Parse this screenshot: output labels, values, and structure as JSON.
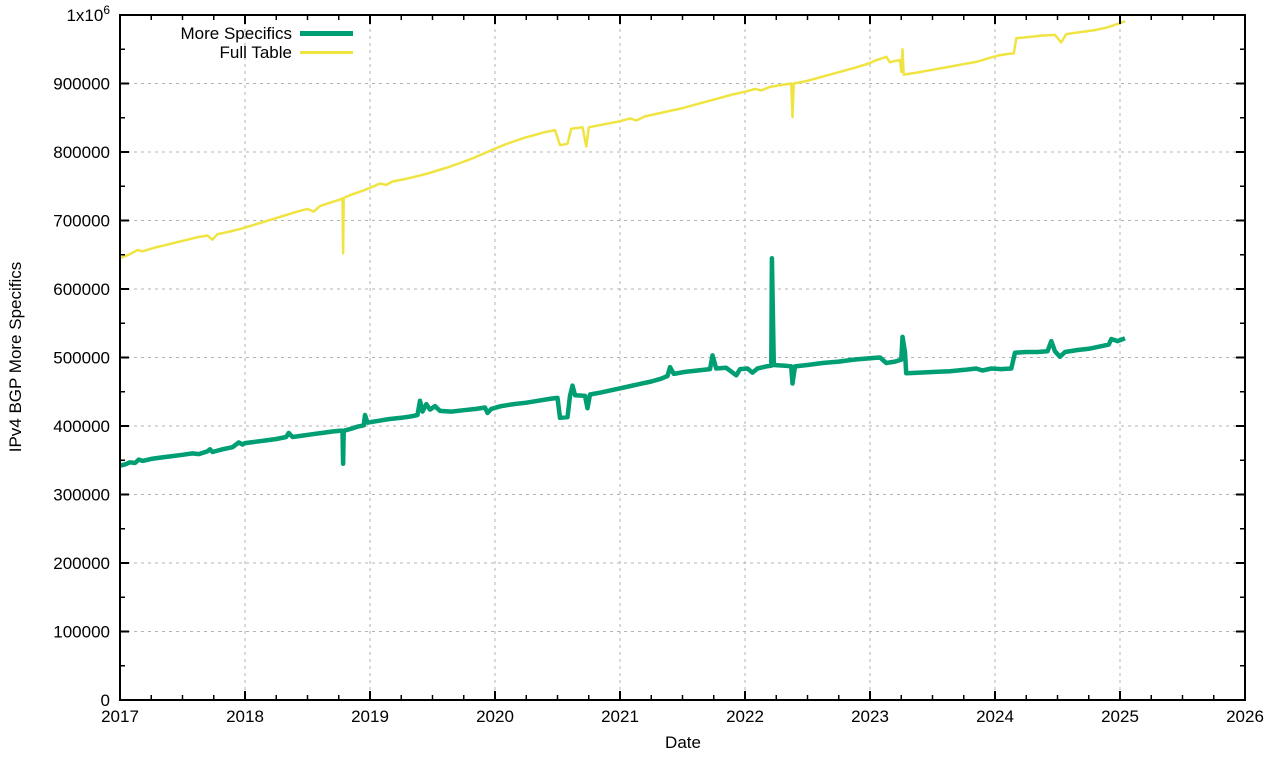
{
  "figure": {
    "background": "#ffffff",
    "border_color": "#000000",
    "grid_color": "#b3b3b3",
    "text_color": "#000000"
  },
  "axes": {
    "xlabel": "Date",
    "ylabel": "IPv4 BGP More Specifics",
    "x_ticks": [
      2017,
      2018,
      2019,
      2020,
      2021,
      2022,
      2023,
      2024,
      2025,
      2026
    ],
    "y_ticks": [
      {
        "value": 0,
        "label": "0"
      },
      {
        "value": 100000,
        "label": "100000"
      },
      {
        "value": 200000,
        "label": "200000"
      },
      {
        "value": 300000,
        "label": "300000"
      },
      {
        "value": 400000,
        "label": "400000"
      },
      {
        "value": 500000,
        "label": "500000"
      },
      {
        "value": 600000,
        "label": "600000"
      },
      {
        "value": 700000,
        "label": "700000"
      },
      {
        "value": 800000,
        "label": "800000"
      },
      {
        "value": 900000,
        "label": "900000"
      },
      {
        "value": 1000000,
        "label": "1x10",
        "sup": "6"
      }
    ]
  },
  "legend": {
    "position": "top-left-inside",
    "items": [
      {
        "label": "More Specifics",
        "color": "#009e73",
        "sample_thickness": 5
      },
      {
        "label": "Full Table",
        "color": "#f0e442",
        "sample_thickness": 3
      }
    ]
  },
  "chart_data": {
    "type": "line",
    "title": "",
    "xlabel": "Date",
    "ylabel": "IPv4 BGP More Specifics",
    "xlim": [
      2017,
      2026
    ],
    "ylim": [
      0,
      1000000
    ],
    "grid": true,
    "x_minor_step": 0.25,
    "y_minor_step": 50000,
    "legend_position": "top-left-inside",
    "series": [
      {
        "name": "More Specifics",
        "color": "#009e73",
        "line_width": 4.5,
        "points": [
          [
            2017.0,
            342000
          ],
          [
            2017.04,
            344000
          ],
          [
            2017.08,
            347000
          ],
          [
            2017.12,
            346000
          ],
          [
            2017.15,
            351000
          ],
          [
            2017.18,
            349000
          ],
          [
            2017.25,
            352000
          ],
          [
            2017.33,
            354000
          ],
          [
            2017.42,
            356000
          ],
          [
            2017.5,
            358000
          ],
          [
            2017.58,
            360000
          ],
          [
            2017.63,
            359000
          ],
          [
            2017.7,
            363000
          ],
          [
            2017.72,
            366000
          ],
          [
            2017.74,
            362000
          ],
          [
            2017.82,
            366000
          ],
          [
            2017.9,
            369000
          ],
          [
            2017.95,
            376000
          ],
          [
            2017.98,
            373000
          ],
          [
            2018.0,
            375000
          ],
          [
            2018.08,
            377000
          ],
          [
            2018.17,
            379000
          ],
          [
            2018.25,
            381000
          ],
          [
            2018.33,
            384000
          ],
          [
            2018.35,
            390000
          ],
          [
            2018.38,
            384000
          ],
          [
            2018.46,
            386000
          ],
          [
            2018.54,
            388000
          ],
          [
            2018.62,
            390000
          ],
          [
            2018.7,
            392000
          ],
          [
            2018.76,
            393000
          ],
          [
            2018.78,
            393000
          ],
          [
            2018.785,
            345000
          ],
          [
            2018.79,
            393000
          ],
          [
            2018.85,
            396000
          ],
          [
            2018.9,
            399000
          ],
          [
            2018.95,
            401000
          ],
          [
            2018.96,
            416000
          ],
          [
            2018.98,
            405000
          ],
          [
            2019.05,
            407000
          ],
          [
            2019.15,
            410000
          ],
          [
            2019.25,
            412000
          ],
          [
            2019.33,
            414000
          ],
          [
            2019.38,
            416000
          ],
          [
            2019.4,
            437000
          ],
          [
            2019.42,
            421000
          ],
          [
            2019.45,
            432000
          ],
          [
            2019.48,
            424000
          ],
          [
            2019.52,
            429000
          ],
          [
            2019.56,
            422000
          ],
          [
            2019.65,
            421000
          ],
          [
            2019.75,
            423000
          ],
          [
            2019.85,
            425000
          ],
          [
            2019.92,
            427000
          ],
          [
            2019.94,
            419000
          ],
          [
            2019.97,
            425000
          ],
          [
            2020.05,
            429000
          ],
          [
            2020.15,
            432000
          ],
          [
            2020.25,
            434000
          ],
          [
            2020.35,
            437000
          ],
          [
            2020.45,
            440000
          ],
          [
            2020.5,
            441000
          ],
          [
            2020.52,
            412000
          ],
          [
            2020.58,
            413000
          ],
          [
            2020.6,
            444000
          ],
          [
            2020.62,
            459000
          ],
          [
            2020.64,
            445000
          ],
          [
            2020.72,
            444000
          ],
          [
            2020.74,
            426000
          ],
          [
            2020.76,
            446000
          ],
          [
            2020.85,
            449000
          ],
          [
            2020.95,
            453000
          ],
          [
            2021.05,
            457000
          ],
          [
            2021.15,
            461000
          ],
          [
            2021.25,
            465000
          ],
          [
            2021.33,
            469000
          ],
          [
            2021.38,
            473000
          ],
          [
            2021.4,
            486000
          ],
          [
            2021.43,
            476000
          ],
          [
            2021.52,
            479000
          ],
          [
            2021.62,
            481000
          ],
          [
            2021.72,
            483000
          ],
          [
            2021.74,
            503000
          ],
          [
            2021.77,
            484000
          ],
          [
            2021.85,
            485000
          ],
          [
            2021.93,
            474000
          ],
          [
            2021.96,
            483000
          ],
          [
            2022.02,
            484000
          ],
          [
            2022.06,
            478000
          ],
          [
            2022.1,
            484000
          ],
          [
            2022.17,
            487000
          ],
          [
            2022.21,
            488000
          ],
          [
            2022.215,
            645000
          ],
          [
            2022.23,
            489000
          ],
          [
            2022.32,
            488000
          ],
          [
            2022.37,
            487000
          ],
          [
            2022.38,
            462000
          ],
          [
            2022.4,
            487000
          ],
          [
            2022.5,
            489000
          ],
          [
            2022.62,
            492000
          ],
          [
            2022.75,
            494000
          ],
          [
            2022.87,
            497000
          ],
          [
            2023.0,
            499000
          ],
          [
            2023.08,
            500000
          ],
          [
            2023.13,
            492000
          ],
          [
            2023.2,
            494000
          ],
          [
            2023.25,
            497000
          ],
          [
            2023.26,
            530000
          ],
          [
            2023.28,
            508000
          ],
          [
            2023.29,
            477000
          ],
          [
            2023.4,
            478000
          ],
          [
            2023.52,
            479000
          ],
          [
            2023.64,
            480000
          ],
          [
            2023.76,
            482000
          ],
          [
            2023.85,
            484000
          ],
          [
            2023.9,
            481000
          ],
          [
            2023.97,
            484000
          ],
          [
            2024.05,
            483000
          ],
          [
            2024.13,
            484000
          ],
          [
            2024.16,
            507000
          ],
          [
            2024.25,
            508000
          ],
          [
            2024.34,
            508000
          ],
          [
            2024.42,
            509000
          ],
          [
            2024.45,
            524000
          ],
          [
            2024.48,
            509000
          ],
          [
            2024.52,
            501000
          ],
          [
            2024.56,
            508000
          ],
          [
            2024.66,
            511000
          ],
          [
            2024.76,
            513000
          ],
          [
            2024.86,
            517000
          ],
          [
            2024.91,
            519000
          ],
          [
            2024.93,
            527000
          ],
          [
            2024.98,
            524000
          ],
          [
            2025.04,
            528000
          ]
        ]
      },
      {
        "name": "Full Table",
        "color": "#f0e442",
        "line_width": 2.5,
        "points": [
          [
            2017.0,
            645000
          ],
          [
            2017.08,
            651000
          ],
          [
            2017.14,
            657000
          ],
          [
            2017.18,
            655000
          ],
          [
            2017.27,
            660000
          ],
          [
            2017.36,
            664000
          ],
          [
            2017.45,
            668000
          ],
          [
            2017.54,
            672000
          ],
          [
            2017.63,
            676000
          ],
          [
            2017.7,
            678000
          ],
          [
            2017.74,
            672000
          ],
          [
            2017.78,
            680000
          ],
          [
            2017.88,
            684000
          ],
          [
            2017.97,
            688000
          ],
          [
            2018.06,
            693000
          ],
          [
            2018.15,
            698000
          ],
          [
            2018.24,
            703000
          ],
          [
            2018.33,
            708000
          ],
          [
            2018.42,
            713000
          ],
          [
            2018.5,
            717000
          ],
          [
            2018.55,
            713000
          ],
          [
            2018.6,
            721000
          ],
          [
            2018.68,
            726000
          ],
          [
            2018.75,
            730000
          ],
          [
            2018.78,
            732000
          ],
          [
            2018.785,
            652000
          ],
          [
            2018.79,
            733000
          ],
          [
            2018.87,
            739000
          ],
          [
            2018.95,
            744000
          ],
          [
            2019.03,
            750000
          ],
          [
            2019.08,
            754000
          ],
          [
            2019.13,
            752000
          ],
          [
            2019.18,
            757000
          ],
          [
            2019.27,
            760000
          ],
          [
            2019.36,
            764000
          ],
          [
            2019.45,
            768000
          ],
          [
            2019.54,
            773000
          ],
          [
            2019.63,
            778000
          ],
          [
            2019.72,
            784000
          ],
          [
            2019.81,
            790000
          ],
          [
            2019.9,
            797000
          ],
          [
            2020.0,
            805000
          ],
          [
            2020.08,
            811000
          ],
          [
            2020.16,
            816000
          ],
          [
            2020.24,
            821000
          ],
          [
            2020.32,
            825000
          ],
          [
            2020.4,
            829000
          ],
          [
            2020.48,
            832000
          ],
          [
            2020.52,
            810000
          ],
          [
            2020.58,
            812000
          ],
          [
            2020.61,
            834000
          ],
          [
            2020.7,
            836000
          ],
          [
            2020.73,
            808000
          ],
          [
            2020.75,
            836000
          ],
          [
            2020.83,
            839000
          ],
          [
            2020.92,
            842000
          ],
          [
            2021.0,
            845000
          ],
          [
            2021.08,
            849000
          ],
          [
            2021.13,
            846000
          ],
          [
            2021.2,
            852000
          ],
          [
            2021.3,
            856000
          ],
          [
            2021.4,
            860000
          ],
          [
            2021.5,
            864000
          ],
          [
            2021.6,
            869000
          ],
          [
            2021.7,
            874000
          ],
          [
            2021.8,
            879000
          ],
          [
            2021.9,
            884000
          ],
          [
            2022.0,
            888000
          ],
          [
            2022.08,
            892000
          ],
          [
            2022.13,
            890000
          ],
          [
            2022.2,
            895000
          ],
          [
            2022.3,
            898000
          ],
          [
            2022.37,
            900000
          ],
          [
            2022.38,
            851000
          ],
          [
            2022.39,
            900000
          ],
          [
            2022.48,
            903000
          ],
          [
            2022.58,
            908000
          ],
          [
            2022.68,
            913000
          ],
          [
            2022.78,
            918000
          ],
          [
            2022.88,
            923000
          ],
          [
            2022.95,
            927000
          ],
          [
            2023.0,
            930000
          ],
          [
            2023.05,
            934000
          ],
          [
            2023.1,
            937000
          ],
          [
            2023.13,
            939000
          ],
          [
            2023.16,
            931000
          ],
          [
            2023.2,
            933000
          ],
          [
            2023.24,
            934000
          ],
          [
            2023.25,
            917000
          ],
          [
            2023.26,
            950000
          ],
          [
            2023.27,
            913000
          ],
          [
            2023.38,
            916000
          ],
          [
            2023.5,
            920000
          ],
          [
            2023.62,
            924000
          ],
          [
            2023.74,
            928000
          ],
          [
            2023.86,
            932000
          ],
          [
            2023.95,
            937000
          ],
          [
            2024.03,
            941000
          ],
          [
            2024.1,
            943000
          ],
          [
            2024.15,
            944000
          ],
          [
            2024.17,
            966000
          ],
          [
            2024.28,
            968000
          ],
          [
            2024.38,
            970000
          ],
          [
            2024.48,
            971000
          ],
          [
            2024.53,
            960000
          ],
          [
            2024.57,
            972000
          ],
          [
            2024.68,
            975000
          ],
          [
            2024.8,
            978000
          ],
          [
            2024.9,
            982000
          ],
          [
            2025.0,
            988000
          ],
          [
            2025.04,
            991000
          ]
        ]
      }
    ]
  }
}
